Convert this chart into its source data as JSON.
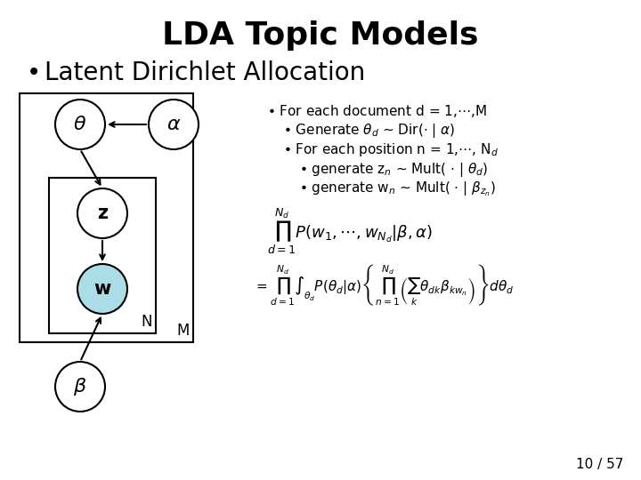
{
  "title": "LDA Topic Models",
  "bullet1": "Latent Dirichlet Allocation",
  "text_lines": [
    "• For each document d = 1,⋯,M",
    "• Generate θₙ ∼ Dir(· | α)",
    "• For each position n = 1,⋯, Nₙ",
    "• generate zₙ ∼ Mult( · | θₙ)",
    "• generate wₙ ∼ Mult( · | βzₙ)"
  ],
  "formula1": "$\\prod_{d=1}^{N_d} P(w_1,\\cdots,w_{N_d}|\\beta,\\alpha)$",
  "formula2": "$= \\prod_{d=1}^{N_d}\\int_{\\theta_d} P(\\theta_d|\\alpha) \\left\\{ \\prod_{n=1}^{N_d} \\left( \\sum_k \\theta_{dk} \\beta_{kw_n} \\right) \\right\\} d\\theta_d$",
  "page": "10 / 57",
  "bg_color": "#ffffff",
  "node_color_theta": "#ffffff",
  "node_color_z": "#ffffff",
  "node_color_w": "#aadde6",
  "node_color_alpha": "#ffffff",
  "node_color_beta": "#ffffff",
  "node_border": "#000000",
  "box_color": "#000000",
  "arrow_color": "#000000"
}
